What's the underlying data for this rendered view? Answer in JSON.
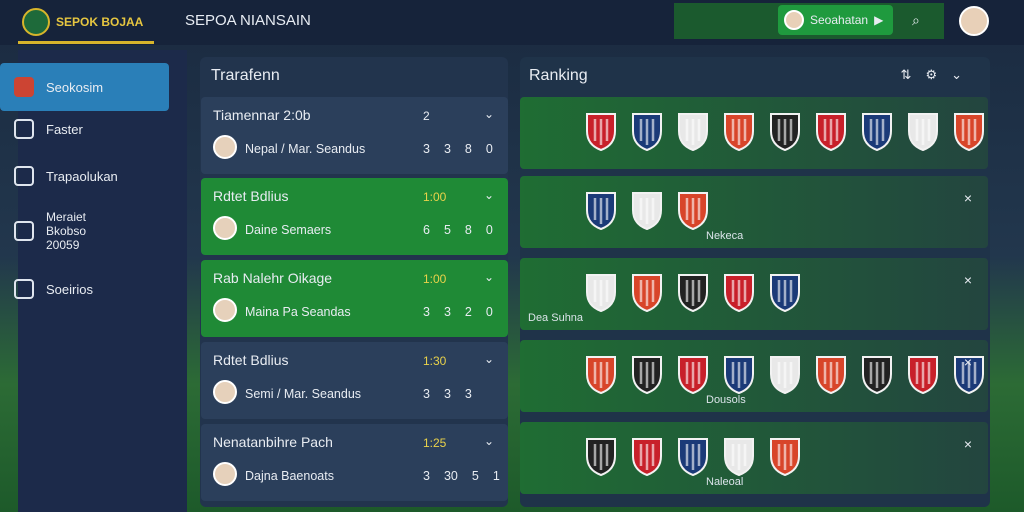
{
  "header": {
    "logo": "SEPOK BOJAA",
    "title": "SEPOA NIANSAIN",
    "button": "Seoahatan"
  },
  "sidebar": {
    "items": [
      "Seokosim",
      "Faster",
      "Trapaolukan",
      "Meraiet Bkobso 20059",
      "Soeirios"
    ]
  },
  "matches": {
    "title": "Trarafenn",
    "cards": [
      {
        "title": "Tiamennar 2:0b",
        "time": "2",
        "player": "Nepal / Mar. Seandus",
        "scores": [
          3,
          3,
          8,
          0
        ]
      },
      {
        "title": "Rdtet Bdlius",
        "time": "1:00",
        "player": "Daine Semaers",
        "scores": [
          6,
          5,
          8,
          0
        ]
      },
      {
        "title": "Rab Nalehr Oikage",
        "time": "1:00",
        "player": "Maina Pa Seandas",
        "scores": [
          3,
          3,
          2,
          0
        ]
      },
      {
        "title": "Rdtet Bdlius",
        "time": "1:30",
        "player": "Semi / Mar. Seandus",
        "scores": [
          3,
          3,
          3
        ]
      },
      {
        "title": "Nenatanbihre Pach",
        "time": "1:25",
        "player": "Dajna Baenoats",
        "scores": [
          3,
          30,
          5,
          1
        ]
      }
    ]
  },
  "ranking": {
    "title": "Ranking",
    "labels": [
      "Nekeca",
      "Dea Suhna",
      "Dousols",
      "Naleoal"
    ]
  }
}
